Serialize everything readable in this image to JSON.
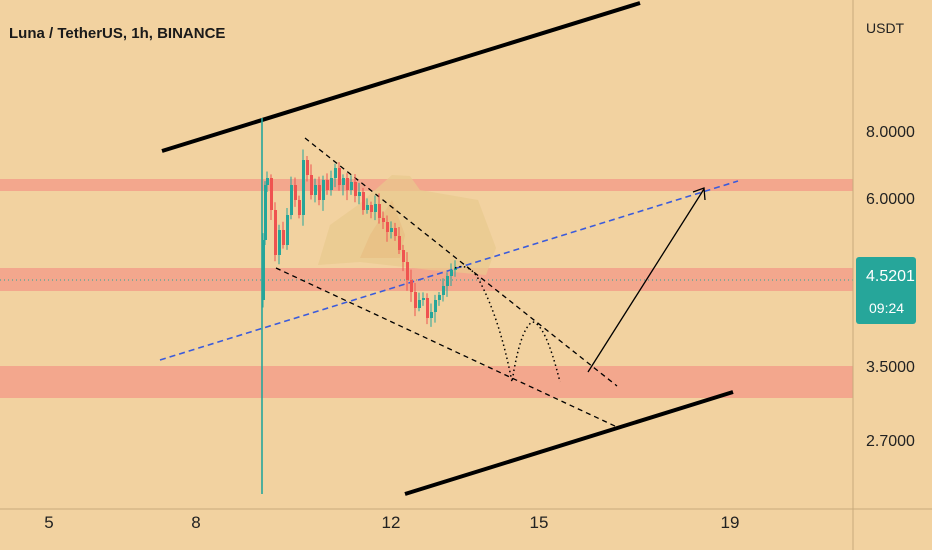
{
  "chart_data": {
    "type": "candlestick",
    "title": "Luna / TetherUS, 1h, BINANCE",
    "y_unit": "USDT",
    "y_scale": "log",
    "y_ticks": [
      "8.0000",
      "6.0000",
      "3.5000",
      "2.7000"
    ],
    "x_ticks": [
      "5",
      "8",
      "12",
      "15",
      "19"
    ],
    "last_price": "4.5201",
    "countdown": "09:24",
    "colors": {
      "background": "#f2d2a0",
      "zone": "#f3a08a",
      "bullish": "#26a69a",
      "bearish": "#ef5350",
      "projection": "#3b5bdb",
      "trendline": "#000000",
      "price_label": "#26a69a"
    },
    "zones": [
      {
        "from": 5.85,
        "to": 6.15
      },
      {
        "from": 4.22,
        "to": 4.62
      },
      {
        "from": 3.1,
        "to": 3.45
      }
    ]
  }
}
